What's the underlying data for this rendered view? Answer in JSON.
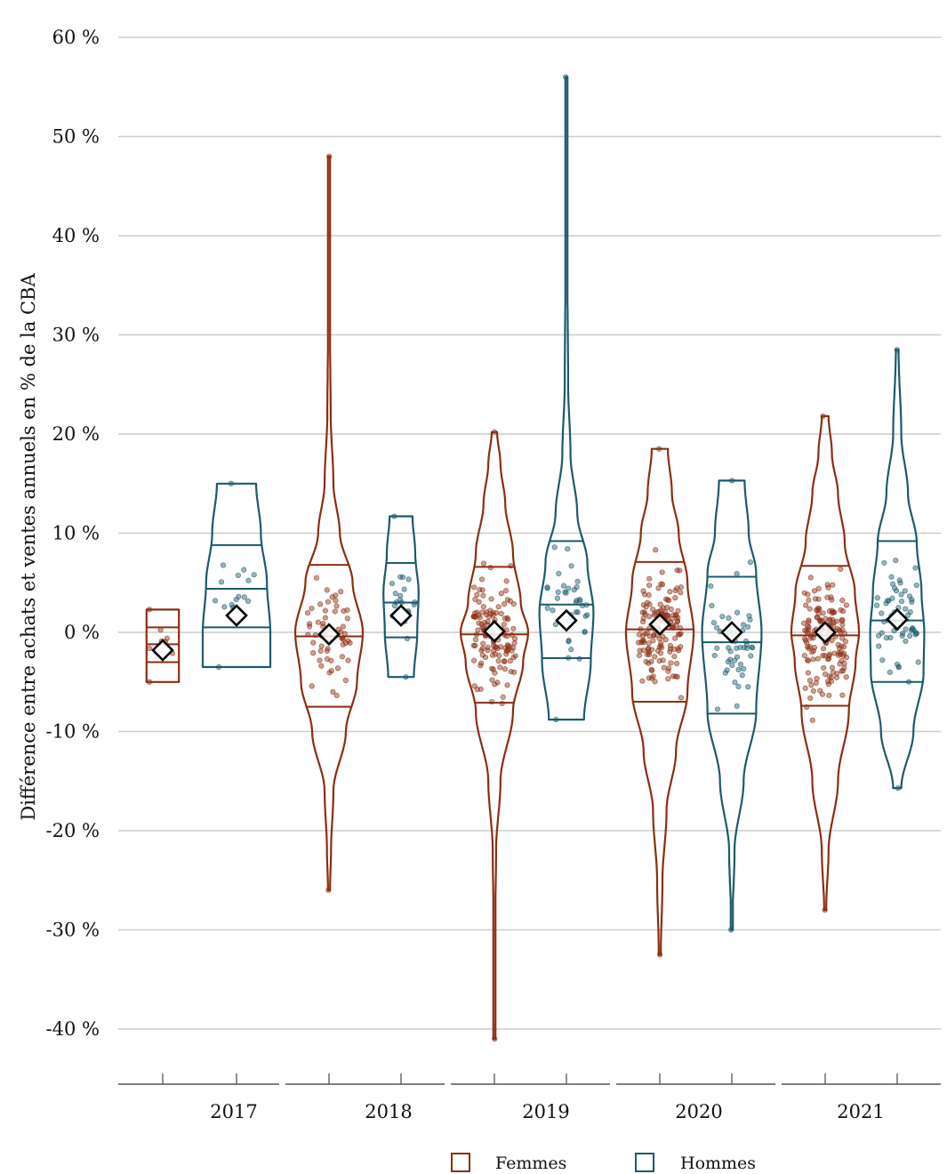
{
  "chart_data": {
    "type": "violin",
    "ylabel": "Différence entre achats et ventes annuels en % de la CBA",
    "xlabel": "",
    "ylim": [
      -45,
      60
    ],
    "yticks": [
      60,
      50,
      40,
      30,
      20,
      10,
      0,
      -10,
      -20,
      -30,
      -40
    ],
    "ytick_labels": [
      "60 %",
      "50 %",
      "40 %",
      "30 %",
      "20 %",
      "10 %",
      "0 %",
      "-10 %",
      "-20 %",
      "-30 %",
      "-40 %"
    ],
    "grid": true,
    "categories": [
      "2017",
      "2018",
      "2019",
      "2020",
      "2021"
    ],
    "legend": {
      "placement": "bottom",
      "entries": [
        "Femmes",
        "Hommes"
      ]
    },
    "colors": {
      "Femmes": "#8B2E12",
      "Hommes": "#1B5A6B",
      "grid": "#cccccc",
      "mean_marker": "#000000"
    },
    "series": [
      {
        "name": "Femmes",
        "groups": [
          {
            "year": "2017",
            "min": -5,
            "max": 2.3,
            "q1": -3,
            "median": -1.2,
            "q3": 0.5,
            "mean": -1.8,
            "n": 8,
            "profile": [
              [
                -5,
                1
              ],
              [
                2.3,
                1
              ]
            ]
          },
          {
            "year": "2018",
            "min": -26,
            "max": 48,
            "q1": -7.5,
            "median": -0.4,
            "q3": 6.8,
            "mean": -0.2,
            "n": 60,
            "profile": [
              [
                -26,
                0.03
              ],
              [
                -22,
                0.06
              ],
              [
                -16,
                0.13
              ],
              [
                -10,
                0.5
              ],
              [
                -5,
                0.83
              ],
              [
                0,
                1
              ],
              [
                5,
                0.7
              ],
              [
                10,
                0.32
              ],
              [
                15,
                0.13
              ],
              [
                22,
                0.05
              ],
              [
                30,
                0.03
              ],
              [
                40,
                0.02
              ],
              [
                48,
                0.02
              ]
            ]
          },
          {
            "year": "2019",
            "min": -41,
            "max": 20.2,
            "q1": -7.1,
            "median": -0.2,
            "q3": 6.6,
            "mean": 0.1,
            "n": 130,
            "profile": [
              [
                -41,
                0.01
              ],
              [
                -30,
                0.02
              ],
              [
                -22,
                0.05
              ],
              [
                -15,
                0.18
              ],
              [
                -8,
                0.55
              ],
              [
                -3,
                0.85
              ],
              [
                0,
                1
              ],
              [
                3,
                0.78
              ],
              [
                8,
                0.55
              ],
              [
                13,
                0.32
              ],
              [
                17,
                0.18
              ],
              [
                20.2,
                0.08
              ]
            ]
          },
          {
            "year": "2020",
            "min": -32.5,
            "max": 18.5,
            "q1": -7.0,
            "median": 0.3,
            "q3": 7.1,
            "mean": 0.8,
            "n": 150,
            "profile": [
              [
                -32.5,
                0.03
              ],
              [
                -25,
                0.08
              ],
              [
                -18,
                0.2
              ],
              [
                -12,
                0.48
              ],
              [
                -6,
                0.82
              ],
              [
                0,
                1
              ],
              [
                5,
                0.82
              ],
              [
                10,
                0.56
              ],
              [
                14,
                0.36
              ],
              [
                18.5,
                0.24
              ]
            ]
          },
          {
            "year": "2021",
            "min": -28,
            "max": 21.8,
            "q1": -7.4,
            "median": -0.3,
            "q3": 6.7,
            "mean": 0.0,
            "n": 160,
            "profile": [
              [
                -28,
                0.03
              ],
              [
                -22,
                0.1
              ],
              [
                -15,
                0.38
              ],
              [
                -8,
                0.7
              ],
              [
                -3,
                0.9
              ],
              [
                0,
                1
              ],
              [
                4,
                0.88
              ],
              [
                9,
                0.58
              ],
              [
                14,
                0.38
              ],
              [
                18,
                0.2
              ],
              [
                21.8,
                0.1
              ]
            ]
          }
        ]
      },
      {
        "name": "Hommes",
        "groups": [
          {
            "year": "2017",
            "min": -3.5,
            "max": 15,
            "q1": 0.5,
            "median": 4.4,
            "q3": 8.8,
            "mean": 1.7,
            "n": 16,
            "profile": [
              [
                -3.5,
                1.0
              ],
              [
                0,
                1.0
              ],
              [
                5,
                0.9
              ],
              [
                10,
                0.72
              ],
              [
                15,
                0.58
              ]
            ]
          },
          {
            "year": "2018",
            "min": -4.5,
            "max": 11.7,
            "q1": -0.5,
            "median": 3.0,
            "q3": 7.0,
            "mean": 1.7,
            "n": 20,
            "profile": [
              [
                -4.5,
                0.38
              ],
              [
                0,
                0.48
              ],
              [
                4,
                0.52
              ],
              [
                8,
                0.42
              ],
              [
                11.7,
                0.34
              ]
            ]
          },
          {
            "year": "2019",
            "min": -8.8,
            "max": 56,
            "q1": -2.6,
            "median": 2.8,
            "q3": 9.2,
            "mean": 1.2,
            "n": 40,
            "profile": [
              [
                -8.8,
                0.52
              ],
              [
                -3,
                0.72
              ],
              [
                2,
                0.8
              ],
              [
                7,
                0.62
              ],
              [
                12,
                0.32
              ],
              [
                18,
                0.12
              ],
              [
                25,
                0.05
              ],
              [
                40,
                0.02
              ],
              [
                56,
                0.02
              ]
            ]
          },
          {
            "year": "2020",
            "min": -30,
            "max": 15.3,
            "q1": -8.2,
            "median": -1.0,
            "q3": 5.6,
            "mean": 0.0,
            "n": 50,
            "profile": [
              [
                -30,
                0.01
              ],
              [
                -22,
                0.08
              ],
              [
                -15,
                0.35
              ],
              [
                -8,
                0.72
              ],
              [
                0,
                0.88
              ],
              [
                6,
                0.72
              ],
              [
                10,
                0.5
              ],
              [
                15.3,
                0.38
              ]
            ]
          },
          {
            "year": "2021",
            "min": -15.7,
            "max": 28.5,
            "q1": -5.0,
            "median": 1.2,
            "q3": 9.2,
            "mean": 1.3,
            "n": 60,
            "profile": [
              [
                -15.7,
                0.12
              ],
              [
                -10,
                0.48
              ],
              [
                -4,
                0.78
              ],
              [
                0,
                0.8
              ],
              [
                4,
                0.72
              ],
              [
                9,
                0.58
              ],
              [
                14,
                0.32
              ],
              [
                20,
                0.12
              ],
              [
                28.5,
                0.04
              ]
            ]
          }
        ]
      }
    ]
  }
}
